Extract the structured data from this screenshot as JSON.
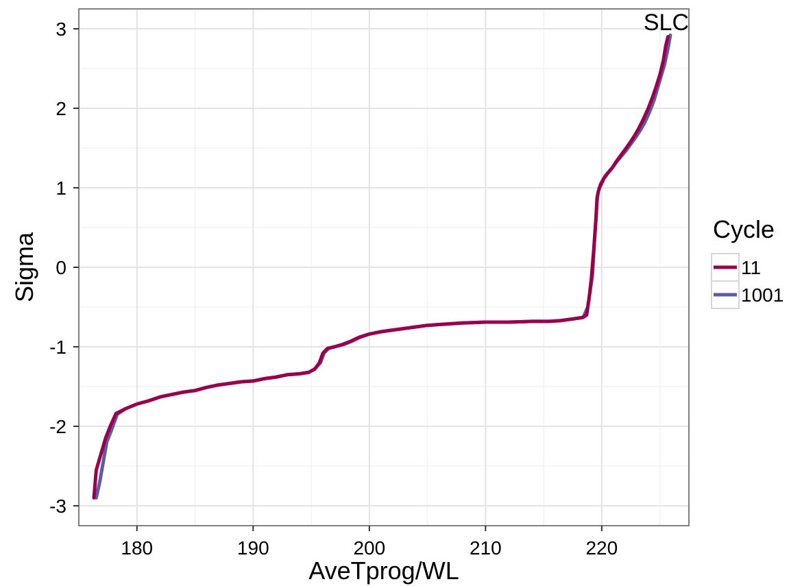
{
  "chart_data": {
    "type": "line",
    "title": "SLC",
    "xlabel": "AveTprog/WL",
    "ylabel": "Sigma",
    "xlim": [
      175,
      227.5
    ],
    "ylim": [
      -3.25,
      3.25
    ],
    "xticks": [
      180,
      190,
      200,
      210,
      220
    ],
    "yticks": [
      -3,
      -2,
      -1,
      0,
      1,
      2,
      3
    ],
    "grid": true,
    "legend": {
      "title": "Cycle",
      "placement": "right"
    },
    "series": [
      {
        "name": "1001",
        "color": "#5f5ba3",
        "x": [
          176.5,
          176.8,
          177.1,
          177.4,
          177.8,
          178.3,
          179.0,
          180.0,
          181.0,
          182.0,
          183.0,
          184.0,
          185.0,
          186.0,
          187.0,
          188.0,
          189.0,
          190.0,
          191.0,
          192.0,
          193.0,
          194.0,
          194.8,
          195.3,
          195.8,
          196.1,
          196.5,
          197.0,
          197.8,
          198.5,
          199.2,
          200.0,
          201.0,
          202.0,
          203.0,
          204.0,
          205.0,
          206.0,
          207.0,
          208.0,
          210.0,
          212.0,
          214.0,
          215.5,
          216.5,
          217.5,
          218.4,
          218.8,
          219.0,
          219.2,
          219.4,
          219.6,
          219.7,
          219.8,
          219.9,
          220.1,
          220.3,
          220.6,
          221.0,
          221.3,
          221.7,
          222.1,
          222.5,
          222.9,
          223.3,
          223.7,
          224.1,
          224.5,
          224.8,
          225.1,
          225.4,
          225.7,
          225.9
        ],
        "y": [
          -2.9,
          -2.7,
          -2.45,
          -2.2,
          -2.05,
          -1.85,
          -1.78,
          -1.72,
          -1.68,
          -1.63,
          -1.6,
          -1.57,
          -1.55,
          -1.51,
          -1.48,
          -1.46,
          -1.44,
          -1.43,
          -1.4,
          -1.38,
          -1.35,
          -1.34,
          -1.32,
          -1.28,
          -1.2,
          -1.08,
          -1.02,
          -1.0,
          -0.97,
          -0.93,
          -0.88,
          -0.84,
          -0.81,
          -0.79,
          -0.77,
          -0.75,
          -0.73,
          -0.72,
          -0.71,
          -0.7,
          -0.69,
          -0.69,
          -0.68,
          -0.68,
          -0.67,
          -0.65,
          -0.63,
          -0.5,
          -0.3,
          -0.1,
          0.4,
          0.85,
          0.95,
          1.0,
          1.05,
          1.1,
          1.15,
          1.2,
          1.27,
          1.33,
          1.4,
          1.47,
          1.55,
          1.63,
          1.72,
          1.82,
          1.95,
          2.1,
          2.25,
          2.4,
          2.55,
          2.75,
          2.92
        ]
      },
      {
        "name": "11",
        "color": "#99004c",
        "x": [
          176.3,
          176.5,
          176.7,
          177.0,
          177.3,
          177.7,
          178.2,
          179.0,
          180.0,
          181.0,
          182.0,
          183.0,
          184.0,
          185.0,
          186.0,
          187.0,
          188.0,
          189.0,
          190.0,
          191.0,
          192.0,
          193.0,
          194.0,
          194.8,
          195.3,
          195.7,
          196.0,
          196.4,
          197.0,
          197.7,
          198.4,
          199.1,
          200.0,
          201.0,
          202.0,
          203.0,
          204.0,
          205.0,
          206.0,
          207.0,
          208.0,
          210.0,
          212.0,
          214.0,
          215.5,
          216.5,
          217.5,
          218.4,
          218.7,
          218.9,
          219.1,
          219.3,
          219.5,
          219.6,
          219.7,
          219.8,
          220.0,
          220.2,
          220.5,
          220.9,
          221.2,
          221.6,
          222.0,
          222.4,
          222.8,
          223.2,
          223.6,
          224.0,
          224.4,
          224.7,
          225.0,
          225.3,
          225.5,
          225.7
        ],
        "y": [
          -2.9,
          -2.55,
          -2.45,
          -2.3,
          -2.15,
          -2.0,
          -1.84,
          -1.78,
          -1.72,
          -1.68,
          -1.63,
          -1.6,
          -1.57,
          -1.55,
          -1.51,
          -1.48,
          -1.46,
          -1.44,
          -1.43,
          -1.4,
          -1.38,
          -1.35,
          -1.34,
          -1.32,
          -1.28,
          -1.2,
          -1.08,
          -1.02,
          -1.0,
          -0.97,
          -0.93,
          -0.88,
          -0.84,
          -0.81,
          -0.79,
          -0.77,
          -0.75,
          -0.73,
          -0.72,
          -0.71,
          -0.7,
          -0.69,
          -0.69,
          -0.68,
          -0.68,
          -0.67,
          -0.65,
          -0.63,
          -0.6,
          -0.4,
          -0.15,
          0.2,
          0.6,
          0.88,
          0.95,
          1.0,
          1.06,
          1.12,
          1.18,
          1.25,
          1.32,
          1.4,
          1.48,
          1.56,
          1.65,
          1.75,
          1.87,
          2.0,
          2.15,
          2.28,
          2.42,
          2.6,
          2.78,
          2.9
        ]
      }
    ]
  }
}
